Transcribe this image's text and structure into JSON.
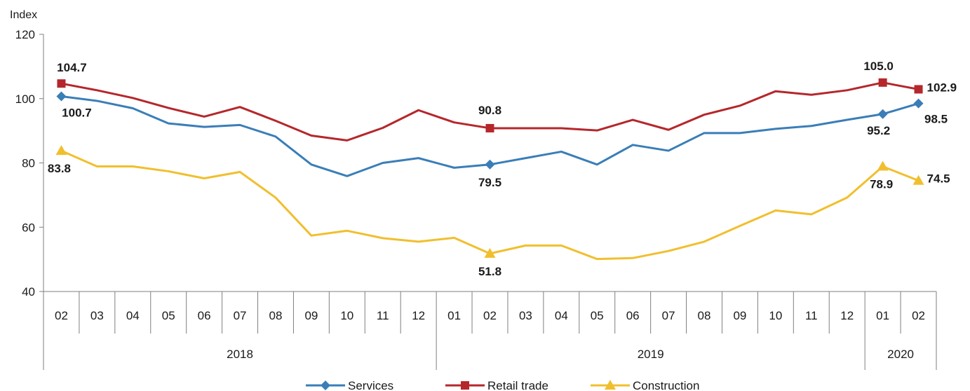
{
  "chart_data": {
    "type": "line",
    "ylabel": "Index",
    "ylim": [
      40,
      120
    ],
    "yticks": [
      40,
      60,
      80,
      100,
      120
    ],
    "grid": false,
    "legend_position": "bottom",
    "categories": [
      "02",
      "03",
      "04",
      "05",
      "06",
      "07",
      "08",
      "09",
      "10",
      "11",
      "12",
      "01",
      "02",
      "03",
      "04",
      "05",
      "06",
      "07",
      "08",
      "09",
      "10",
      "11",
      "12",
      "01",
      "02"
    ],
    "year_groups": [
      {
        "label": "2018",
        "start": 0,
        "end": 10
      },
      {
        "label": "2019",
        "start": 11,
        "end": 22
      },
      {
        "label": "2020",
        "start": 23,
        "end": 24
      }
    ],
    "series": [
      {
        "name": "Services",
        "color": "#3A7EB8",
        "marker": "diamond",
        "values": [
          100.7,
          99.3,
          97.0,
          92.3,
          91.2,
          91.8,
          88.2,
          79.5,
          75.9,
          80.0,
          81.5,
          78.5,
          79.5,
          81.5,
          83.5,
          79.5,
          85.6,
          83.8,
          89.3,
          89.3,
          90.6,
          91.5,
          93.4,
          95.2,
          98.5
        ],
        "labels": [
          {
            "index": 0,
            "text": "100.7"
          },
          {
            "index": 12,
            "text": "79.5"
          },
          {
            "index": 23,
            "text": "95.2"
          },
          {
            "index": 24,
            "text": "98.5"
          }
        ]
      },
      {
        "name": "Retail trade",
        "color": "#B5272B",
        "marker": "square",
        "values": [
          104.7,
          102.6,
          100.2,
          97.1,
          94.4,
          97.4,
          93.1,
          88.5,
          87.0,
          90.9,
          96.4,
          92.6,
          90.8,
          90.8,
          90.8,
          90.1,
          93.4,
          90.3,
          95.0,
          97.8,
          102.3,
          101.2,
          102.6,
          105.0,
          102.9
        ],
        "labels": [
          {
            "index": 0,
            "text": "104.7"
          },
          {
            "index": 12,
            "text": "90.8"
          },
          {
            "index": 23,
            "text": "105.0"
          },
          {
            "index": 24,
            "text": "102.9"
          }
        ]
      },
      {
        "name": "Construction",
        "color": "#F1BF2E",
        "marker": "triangle",
        "values": [
          83.8,
          78.9,
          78.9,
          77.4,
          75.2,
          77.2,
          69.2,
          57.4,
          58.9,
          56.6,
          55.5,
          56.7,
          51.8,
          54.3,
          54.3,
          50.1,
          50.4,
          52.6,
          55.5,
          60.4,
          65.2,
          64.0,
          69.2,
          78.9,
          74.5
        ],
        "labels": [
          {
            "index": 0,
            "text": "83.8"
          },
          {
            "index": 12,
            "text": "51.8"
          },
          {
            "index": 23,
            "text": "78.9"
          },
          {
            "index": 24,
            "text": "74.5"
          }
        ]
      }
    ]
  }
}
